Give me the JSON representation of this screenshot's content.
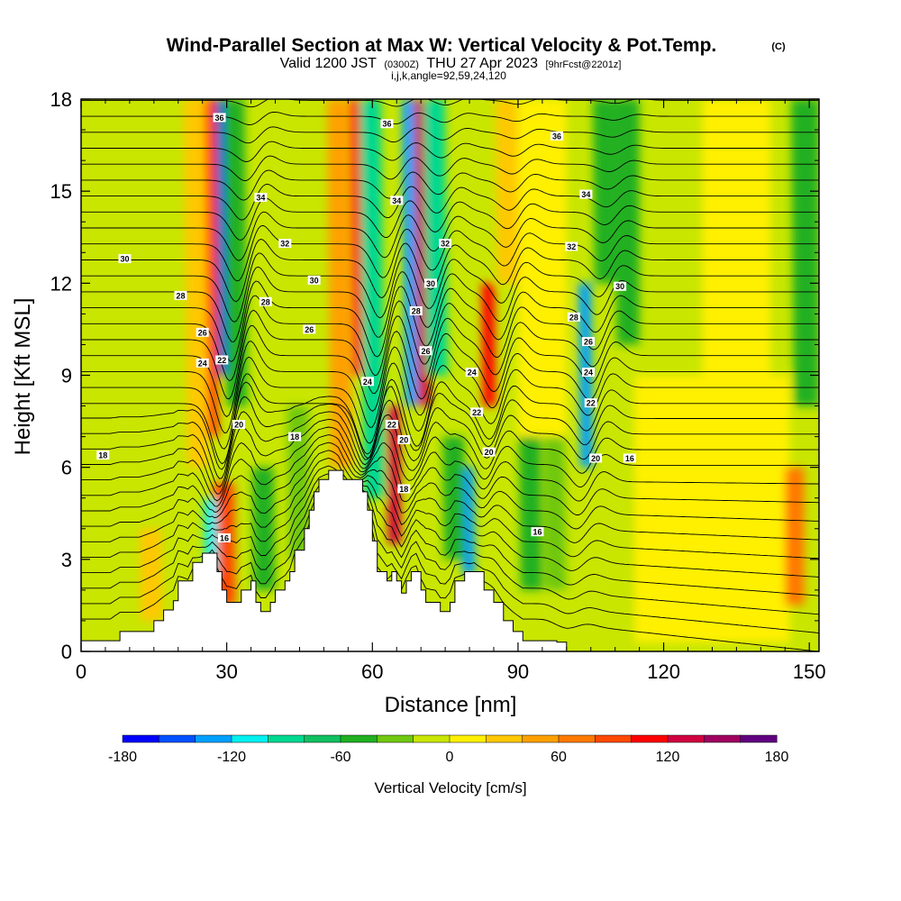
{
  "title": {
    "main": "Wind-Parallel Section at Max W: Vertical Velocity & Pot.Temp.",
    "copyright": "(C)",
    "valid_prefix": "Valid 1200 JST",
    "utc": "(0300Z)",
    "date": "THU 27 Apr 2023",
    "forecast": "[9hrFcst@2201z]",
    "indices": "i,j,k,angle=92,59,24,120"
  },
  "chart_data": {
    "type": "heatmap",
    "xlabel": "Distance [nm]",
    "ylabel": "Height [Kft MSL]",
    "xlim": [
      0,
      152
    ],
    "ylim": [
      0,
      18
    ],
    "x_ticks": [
      0,
      30,
      60,
      90,
      120,
      150
    ],
    "y_ticks": [
      0,
      3,
      6,
      9,
      12,
      15,
      18
    ],
    "colorbar": {
      "title": "Vertical Velocity [cm/s]",
      "min": -180,
      "max": 180,
      "step": 20,
      "tick_values": [
        -180,
        -120,
        -60,
        0,
        60,
        120,
        180
      ],
      "tick_labels": [
        "-180",
        "-120",
        "-60",
        "0",
        "60",
        "120",
        "180"
      ],
      "colors": [
        "#0000ff",
        "#0050ff",
        "#00a0ff",
        "#00f0f0",
        "#00d890",
        "#10c060",
        "#20b020",
        "#70c810",
        "#c8e600",
        "#fff000",
        "#ffc800",
        "#ffa000",
        "#ff7800",
        "#ff4800",
        "#ff0000",
        "#d00040",
        "#a00060",
        "#600080"
      ]
    },
    "vertical_velocity_features": [
      {
        "x": 28,
        "y_bottom": 7,
        "y_top": 18,
        "w": 110
      },
      {
        "x": 30.5,
        "y_bottom": 9,
        "y_top": 18,
        "w": -175
      },
      {
        "x": 25.5,
        "y_bottom": 6,
        "y_top": 18,
        "w": 30
      },
      {
        "x": 33,
        "y_bottom": 8,
        "y_top": 18,
        "w": -60
      },
      {
        "x": 32,
        "y_bottom": 1.5,
        "y_top": 5.5,
        "w": 90
      },
      {
        "x": 29,
        "y_bottom": 2.5,
        "y_top": 5,
        "w": -110
      },
      {
        "x": 58,
        "y_bottom": 9,
        "y_top": 18,
        "w": 115
      },
      {
        "x": 62,
        "y_bottom": 5,
        "y_top": 18,
        "w": -90
      },
      {
        "x": 55,
        "y_bottom": 6,
        "y_top": 18,
        "w": 40
      },
      {
        "x": 66.5,
        "y_bottom": 3.5,
        "y_top": 8,
        "w": 120
      },
      {
        "x": 69,
        "y_bottom": 8,
        "y_top": 18,
        "w": -130
      },
      {
        "x": 71.5,
        "y_bottom": 8,
        "y_top": 18,
        "w": 125
      },
      {
        "x": 74,
        "y_bottom": 9,
        "y_top": 18,
        "w": -90
      },
      {
        "x": 85,
        "y_bottom": 8,
        "y_top": 12,
        "w": 110
      },
      {
        "x": 82,
        "y_bottom": 2.5,
        "y_top": 6,
        "w": -140
      },
      {
        "x": 79,
        "y_bottom": 3,
        "y_top": 7,
        "w": -50
      },
      {
        "x": 95,
        "y_bottom": 2,
        "y_top": 12,
        "w": -55
      },
      {
        "x": 100,
        "y_bottom": 2,
        "y_top": 18,
        "w": -40
      },
      {
        "x": 105.5,
        "y_bottom": 6,
        "y_top": 12,
        "w": -140
      },
      {
        "x": 108,
        "y_bottom": 12,
        "y_top": 18,
        "w": -50
      },
      {
        "x": 113,
        "y_bottom": 10,
        "y_top": 18,
        "w": -45
      },
      {
        "x": 147,
        "y_bottom": 1.5,
        "y_top": 6,
        "w": 75
      },
      {
        "x": 150,
        "y_bottom": 8,
        "y_top": 18,
        "w": -50
      },
      {
        "x": 88,
        "y_bottom": 12,
        "y_top": 18,
        "w": 35
      },
      {
        "x": 17,
        "y_bottom": 1,
        "y_top": 4,
        "w": 25
      },
      {
        "x": 40,
        "y_bottom": 2,
        "y_top": 6,
        "w": -45
      },
      {
        "x": 47,
        "y_bottom": 3,
        "y_top": 8,
        "w": -40
      }
    ],
    "terrain": [
      [
        0,
        0.35
      ],
      [
        6,
        0.35
      ],
      [
        8,
        0.65
      ],
      [
        12,
        0.65
      ],
      [
        15,
        1.0
      ],
      [
        17,
        1.35
      ],
      [
        19,
        1.65
      ],
      [
        20,
        2.3
      ],
      [
        22,
        2.3
      ],
      [
        23,
        2.9
      ],
      [
        25,
        3.2
      ],
      [
        27,
        3.2
      ],
      [
        28,
        2.6
      ],
      [
        29,
        2.0
      ],
      [
        30,
        1.6
      ],
      [
        32,
        1.6
      ],
      [
        33,
        2.0
      ],
      [
        35,
        2.3
      ],
      [
        36,
        1.6
      ],
      [
        37,
        1.3
      ],
      [
        38,
        1.3
      ],
      [
        39,
        1.6
      ],
      [
        40,
        2.0
      ],
      [
        42,
        2.3
      ],
      [
        43,
        2.6
      ],
      [
        44,
        3.3
      ],
      [
        46,
        4.0
      ],
      [
        47,
        4.6
      ],
      [
        48,
        5.2
      ],
      [
        49,
        5.6
      ],
      [
        51,
        5.9
      ],
      [
        53,
        5.9
      ],
      [
        54,
        5.6
      ],
      [
        57,
        5.6
      ],
      [
        58,
        5.2
      ],
      [
        59,
        4.6
      ],
      [
        60,
        3.6
      ],
      [
        61,
        2.6
      ],
      [
        63,
        2.3
      ],
      [
        64,
        2.6
      ],
      [
        65,
        2.3
      ],
      [
        66,
        1.9
      ],
      [
        67,
        2.3
      ],
      [
        68,
        2.6
      ],
      [
        69,
        2.6
      ],
      [
        70,
        2.0
      ],
      [
        71,
        1.6
      ],
      [
        73,
        1.6
      ],
      [
        74,
        1.3
      ],
      [
        75,
        1.3
      ],
      [
        76,
        1.6
      ],
      [
        77,
        2.3
      ],
      [
        79,
        2.6
      ],
      [
        81,
        2.6
      ],
      [
        83,
        2.0
      ],
      [
        85,
        1.6
      ],
      [
        87,
        1.0
      ],
      [
        89,
        0.65
      ],
      [
        91,
        0.35
      ],
      [
        96,
        0.35
      ],
      [
        98,
        0.3
      ],
      [
        100,
        0.25
      ]
    ],
    "isentropes": {
      "label": "Potential temperature contours (labels in °C)",
      "contour_labels": [
        {
          "x": 28.5,
          "y": 17.4,
          "text": "36"
        },
        {
          "x": 63,
          "y": 17.2,
          "text": "36"
        },
        {
          "x": 98,
          "y": 16.8,
          "text": "36"
        },
        {
          "x": 37,
          "y": 14.8,
          "text": "34"
        },
        {
          "x": 65,
          "y": 14.7,
          "text": "34"
        },
        {
          "x": 104,
          "y": 14.9,
          "text": "34"
        },
        {
          "x": 42,
          "y": 13.3,
          "text": "32"
        },
        {
          "x": 75,
          "y": 13.3,
          "text": "32"
        },
        {
          "x": 101,
          "y": 13.2,
          "text": "32"
        },
        {
          "x": 9,
          "y": 12.8,
          "text": "30"
        },
        {
          "x": 48,
          "y": 12.1,
          "text": "30"
        },
        {
          "x": 72,
          "y": 12.0,
          "text": "30"
        },
        {
          "x": 111,
          "y": 11.9,
          "text": "30"
        },
        {
          "x": 20.5,
          "y": 11.6,
          "text": "28"
        },
        {
          "x": 38,
          "y": 11.4,
          "text": "28"
        },
        {
          "x": 69,
          "y": 11.1,
          "text": "28"
        },
        {
          "x": 101.5,
          "y": 10.9,
          "text": "28"
        },
        {
          "x": 47,
          "y": 10.5,
          "text": "26"
        },
        {
          "x": 25,
          "y": 10.4,
          "text": "26"
        },
        {
          "x": 104.5,
          "y": 10.1,
          "text": "26"
        },
        {
          "x": 71,
          "y": 9.8,
          "text": "26"
        },
        {
          "x": 25,
          "y": 9.4,
          "text": "24"
        },
        {
          "x": 29,
          "y": 9.5,
          "text": "22"
        },
        {
          "x": 59,
          "y": 8.8,
          "text": "24"
        },
        {
          "x": 80.5,
          "y": 9.1,
          "text": "24"
        },
        {
          "x": 104.5,
          "y": 9.1,
          "text": "24"
        },
        {
          "x": 105,
          "y": 8.1,
          "text": "22"
        },
        {
          "x": 81.5,
          "y": 7.8,
          "text": "22"
        },
        {
          "x": 64,
          "y": 7.4,
          "text": "22"
        },
        {
          "x": 32.5,
          "y": 7.4,
          "text": "20"
        },
        {
          "x": 66.5,
          "y": 6.9,
          "text": "20"
        },
        {
          "x": 84,
          "y": 6.5,
          "text": "20"
        },
        {
          "x": 106,
          "y": 6.3,
          "text": "20"
        },
        {
          "x": 44,
          "y": 7.0,
          "text": "18"
        },
        {
          "x": 4.5,
          "y": 6.4,
          "text": "18"
        },
        {
          "x": 66.5,
          "y": 5.3,
          "text": "18"
        },
        {
          "x": 113,
          "y": 6.3,
          "text": "16"
        },
        {
          "x": 29.5,
          "y": 3.7,
          "text": "16"
        },
        {
          "x": 94,
          "y": 3.9,
          "text": "16"
        }
      ]
    }
  }
}
